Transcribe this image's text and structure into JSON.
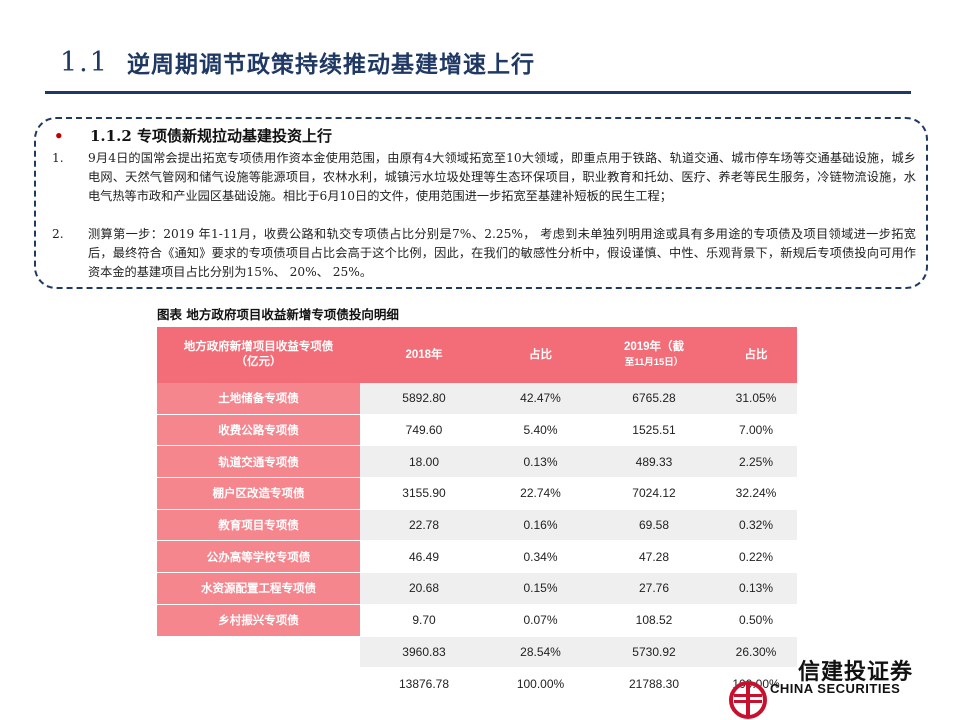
{
  "header": {
    "number": "1.1",
    "title": "逆周期调节政策持续推动基建增速上行"
  },
  "section": {
    "bullet": "•",
    "title": "1.1.2 专项债新规拉动基建投资上行"
  },
  "paragraphs": [
    {
      "num": "1.",
      "text": "9月4日的国常会提出拓宽专项债用作资本金使用范围，由原有4大领域拓宽至10大领域，即重点用于铁路、轨道交通、城市停车场等交通基础设施，城乡电网、天然气管网和储气设施等能源项目，农林水利，城镇污水垃圾处理等生态环保项目，职业教育和托幼、医疗、养老等民生服务，冷链物流设施，水电气热等市政和产业园区基础设施。相比于6月10日的文件，使用范围进一步拓宽至基建补短板的民生工程；"
    },
    {
      "num": "2.",
      "text": "测算第一步：2019 年1-11月，收费公路和轨交专项债占比分别是7%、2.25%， 考虑到未单独列明用途或具有多用途的专项债及项目领域进一步拓宽后，最终符合《通知》要求的专项债项目占比会高于这个比例，因此，在我们的敏感性分析中，假设谨慎、中性、乐观背景下，新规后专项债投向可用作资本金的基建项目占比分别为15%、 20%、 25%。"
    }
  ],
  "figure": {
    "caption": "图表 地方政府项目收益新增专项债投向明细"
  },
  "table": {
    "headers": {
      "c0_line1": "地方政府新增项目收益专项债",
      "c0_line2": "（亿元）",
      "c1": "2018年",
      "c2": "占比",
      "c3_main": "2019年（截",
      "c3_small": "至11月15日）",
      "c4": "占比"
    },
    "rows": [
      {
        "label": "土地储备专项债",
        "v2018": "5892.80",
        "p2018": "42.47%",
        "v2019": "6765.28",
        "p2019": "31.05%"
      },
      {
        "label": "收费公路专项债",
        "v2018": "749.60",
        "p2018": "5.40%",
        "v2019": "1525.51",
        "p2019": "7.00%"
      },
      {
        "label": "轨道交通专项债",
        "v2018": "18.00",
        "p2018": "0.13%",
        "v2019": "489.33",
        "p2019": "2.25%"
      },
      {
        "label": "棚户区改造专项债",
        "v2018": "3155.90",
        "p2018": "22.74%",
        "v2019": "7024.12",
        "p2019": "32.24%"
      },
      {
        "label": "教育项目专项债",
        "v2018": "22.78",
        "p2018": "0.16%",
        "v2019": "69.58",
        "p2019": "0.32%"
      },
      {
        "label": "公办高等学校专项债",
        "v2018": "46.49",
        "p2018": "0.34%",
        "v2019": "47.28",
        "p2019": "0.22%"
      },
      {
        "label": "水资源配置工程专项债",
        "v2018": "20.68",
        "p2018": "0.15%",
        "v2019": "27.76",
        "p2019": "0.13%"
      },
      {
        "label": "乡村振兴专项债",
        "v2018": "9.70",
        "p2018": "0.07%",
        "v2019": "108.52",
        "p2019": "0.50%"
      }
    ],
    "summary": [
      {
        "v2018": "3960.83",
        "p2018": "28.54%",
        "v2019": "5730.92",
        "p2019": "26.30%"
      },
      {
        "v2018": "13876.78",
        "p2018": "100.00%",
        "v2019": "21788.30",
        "p2019": "100.00%"
      }
    ]
  },
  "logo": {
    "cn": "信建投证券",
    "en": "CHINA SECURITIES",
    "mark_color": "#c8102e"
  }
}
